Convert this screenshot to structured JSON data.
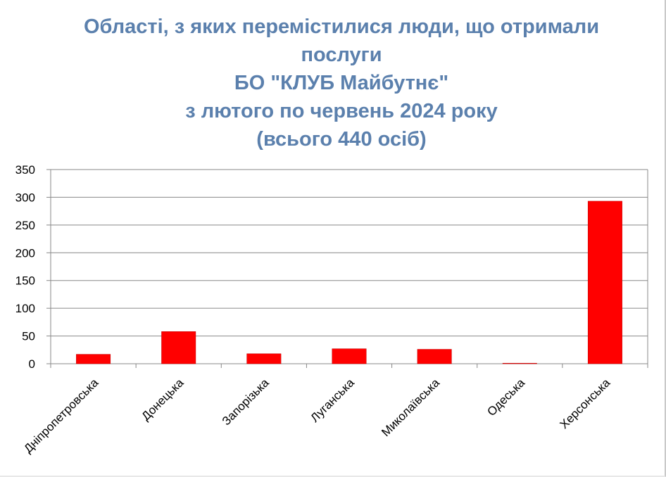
{
  "chart_data": {
    "type": "bar",
    "title_lines": [
      "Області, з яких перемістилися люди, що отримали",
      "послуги",
      "БО \"КЛУБ Майбутнє\"",
      "з лютого по червень 2024 року",
      "(всього 440 осіб)"
    ],
    "categories": [
      "Дніпропетровська",
      "Донецька",
      "Запорізька",
      "Луганська",
      "Миколаївська",
      "Одеська",
      "Херсонська"
    ],
    "values": [
      17,
      58,
      18,
      27,
      26,
      1,
      293
    ],
    "ylim": [
      0,
      350
    ],
    "yticks": [
      "0",
      "50",
      "100",
      "150",
      "200",
      "250",
      "300",
      "350"
    ],
    "grid": true,
    "bar_color": "#ff0000",
    "title_color": "#5b80ad"
  }
}
